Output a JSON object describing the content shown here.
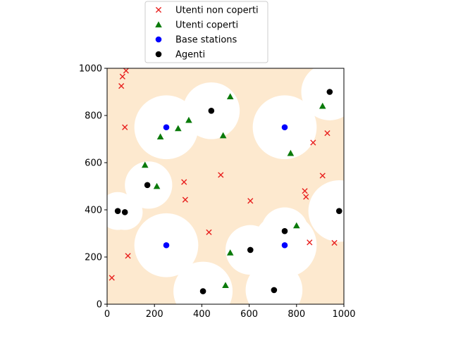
{
  "chart_data": {
    "type": "scatter",
    "xlim": [
      0,
      1000
    ],
    "ylim": [
      0,
      1000
    ],
    "xticks": [
      0,
      200,
      400,
      600,
      800,
      1000
    ],
    "yticks": [
      0,
      200,
      400,
      600,
      800,
      1000
    ],
    "grid": false,
    "legend_placement": "top-center-outside",
    "background_color": "#fde9cf",
    "coverage_color": "#ffffff",
    "base_stations": [
      [
        250,
        750
      ],
      [
        750,
        750
      ],
      [
        250,
        250
      ],
      [
        750,
        250
      ]
    ],
    "coverage_areas": [
      {
        "x": 250,
        "y": 750,
        "r": 135
      },
      {
        "x": 750,
        "y": 750,
        "r": 135
      },
      {
        "x": 250,
        "y": 250,
        "r": 135
      },
      {
        "x": 750,
        "y": 250,
        "r": 135
      },
      {
        "x": 440,
        "y": 820,
        "r": 120
      },
      {
        "x": 940,
        "y": 900,
        "r": 120
      },
      {
        "x": 175,
        "y": 505,
        "r": 100
      },
      {
        "x": 45,
        "y": 395,
        "r": 80
      },
      {
        "x": 75,
        "y": 390,
        "r": 75
      },
      {
        "x": 750,
        "y": 310,
        "r": 100
      },
      {
        "x": 980,
        "y": 395,
        "r": 130
      },
      {
        "x": 605,
        "y": 230,
        "r": 105
      },
      {
        "x": 405,
        "y": 55,
        "r": 125
      },
      {
        "x": 705,
        "y": 60,
        "r": 120
      }
    ],
    "series": [
      {
        "name": "Utenti non coperti",
        "marker": "x",
        "color": "#e8201e",
        "points": [
          [
            20,
            112
          ],
          [
            60,
            925
          ],
          [
            65,
            965
          ],
          [
            80,
            990
          ],
          [
            75,
            750
          ],
          [
            88,
            205
          ],
          [
            325,
            518
          ],
          [
            330,
            443
          ],
          [
            430,
            305
          ],
          [
            480,
            548
          ],
          [
            605,
            438
          ],
          [
            835,
            480
          ],
          [
            840,
            455
          ],
          [
            855,
            262
          ],
          [
            870,
            685
          ],
          [
            910,
            545
          ],
          [
            930,
            725
          ],
          [
            960,
            260
          ]
        ]
      },
      {
        "name": "Utenti coperti",
        "marker": "triangle",
        "color": "#0a7a0a",
        "points": [
          [
            160,
            590
          ],
          [
            210,
            500
          ],
          [
            225,
            710
          ],
          [
            300,
            745
          ],
          [
            345,
            780
          ],
          [
            490,
            715
          ],
          [
            520,
            880
          ],
          [
            500,
            80
          ],
          [
            520,
            218
          ],
          [
            775,
            640
          ],
          [
            800,
            333
          ],
          [
            910,
            840
          ]
        ]
      },
      {
        "name": "Base stations",
        "marker": "circle",
        "color": "#0000ff",
        "points": [
          [
            250,
            750
          ],
          [
            750,
            750
          ],
          [
            250,
            250
          ],
          [
            750,
            250
          ]
        ]
      },
      {
        "name": "Agenti",
        "marker": "circle",
        "color": "#000000",
        "points": [
          [
            440,
            820
          ],
          [
            940,
            900
          ],
          [
            170,
            505
          ],
          [
            45,
            395
          ],
          [
            75,
            390
          ],
          [
            980,
            395
          ],
          [
            750,
            310
          ],
          [
            605,
            230
          ],
          [
            405,
            55
          ],
          [
            705,
            60
          ]
        ]
      }
    ]
  }
}
